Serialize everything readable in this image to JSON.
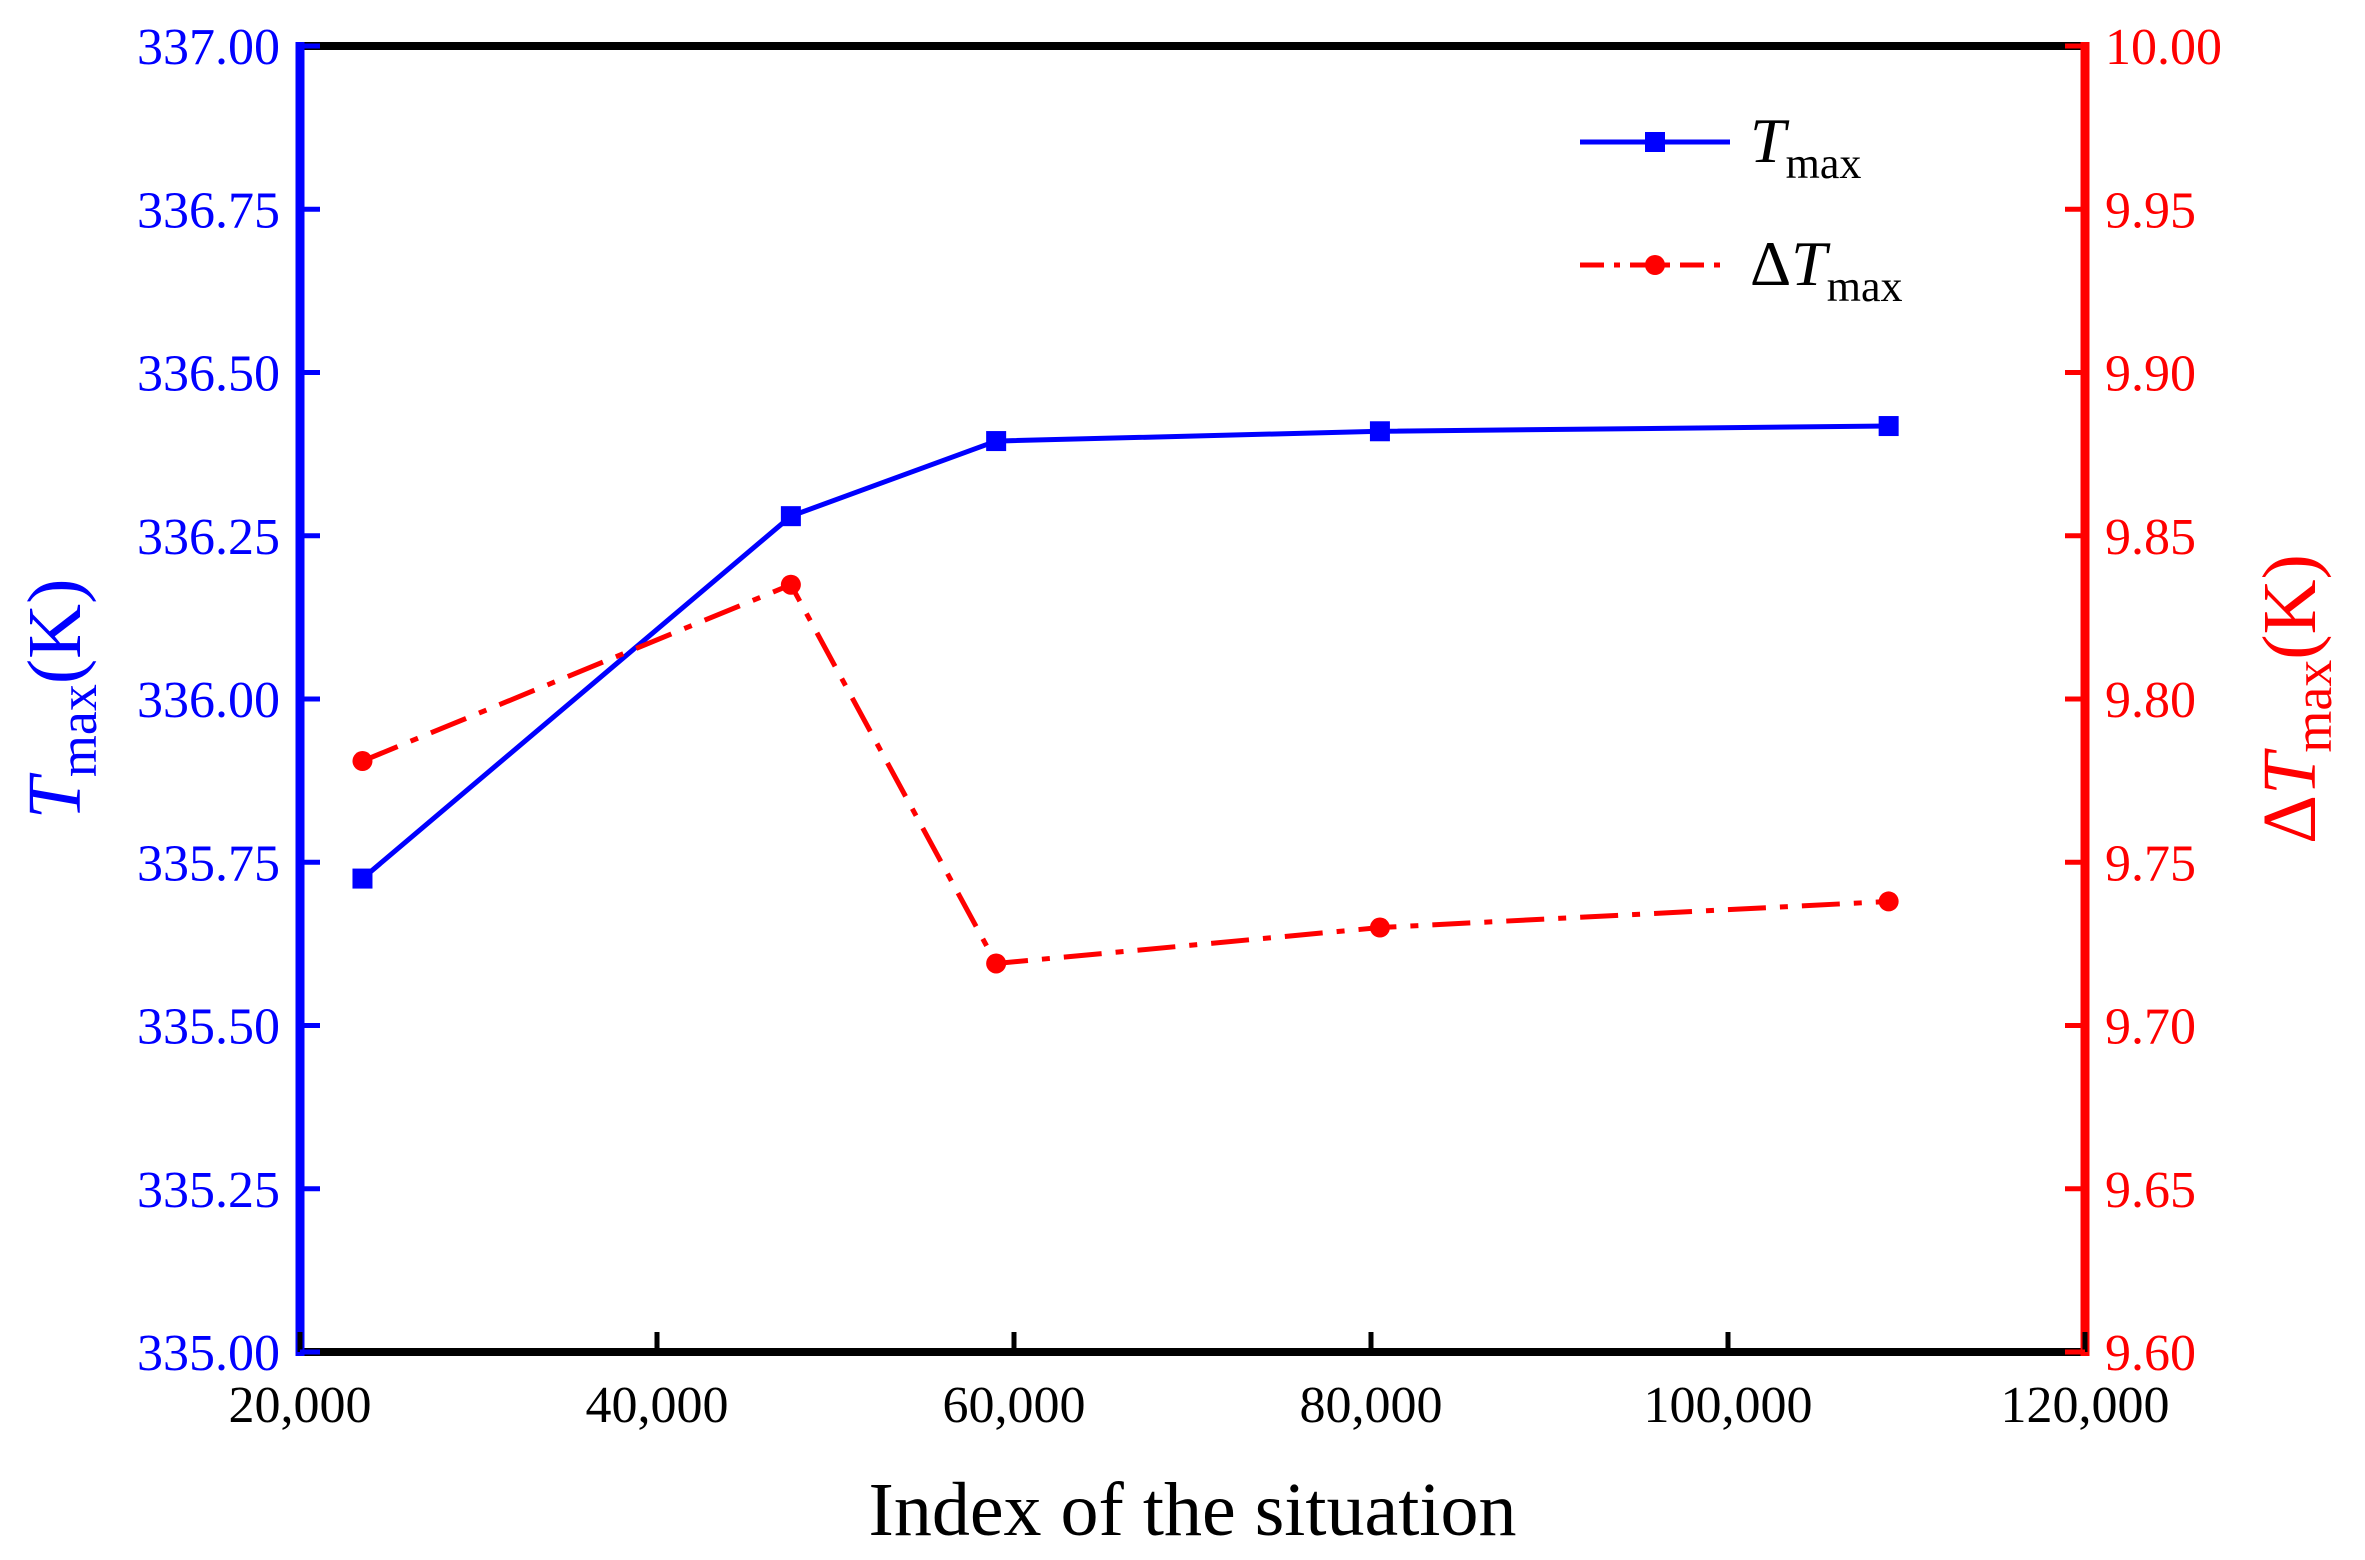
{
  "chart_data": {
    "type": "line",
    "title": "",
    "xlabel": "Index of the situation",
    "x": [
      23500,
      47500,
      59000,
      80500,
      109000
    ],
    "xlim": [
      20000,
      120000
    ],
    "x_ticks": [
      20000,
      40000,
      60000,
      80000,
      100000,
      120000
    ],
    "x_tick_labels": [
      "20,000",
      "40,000",
      "60,000",
      "80,000",
      "100,000",
      "120,000"
    ],
    "y_left": {
      "label_main": "T",
      "label_sub": "max",
      "label_suffix": "(K)",
      "ylim": [
        335.0,
        337.0
      ],
      "ticks": [
        335.0,
        335.25,
        335.5,
        335.75,
        336.0,
        336.25,
        336.5,
        336.75,
        337.0
      ],
      "tick_labels": [
        "335.00",
        "335.25",
        "335.50",
        "335.75",
        "336.00",
        "336.25",
        "336.50",
        "336.75",
        "337.00"
      ],
      "color": "#0000ff"
    },
    "y_right": {
      "label_prefix": "Δ",
      "label_main": "T",
      "label_sub": "max",
      "label_suffix": "(K)",
      "ylim": [
        9.6,
        10.0
      ],
      "ticks": [
        9.6,
        9.65,
        9.7,
        9.75,
        9.8,
        9.85,
        9.9,
        9.95,
        10.0
      ],
      "tick_labels": [
        "9.60",
        "9.65",
        "9.70",
        "9.75",
        "9.80",
        "9.85",
        "9.90",
        "9.95",
        "10.00"
      ],
      "color": "#ff0000"
    },
    "series": [
      {
        "name": "T max",
        "legend_prefix": "",
        "legend_main": "T",
        "legend_sub": "max",
        "axis": "left",
        "values": [
          335.725,
          336.28,
          336.395,
          336.41,
          336.418
        ],
        "color": "#0000ff",
        "line_style": "solid",
        "marker": "square"
      },
      {
        "name": "ΔT max",
        "legend_prefix": "Δ",
        "legend_main": "T",
        "legend_sub": "max",
        "axis": "right",
        "values": [
          9.781,
          9.835,
          9.719,
          9.73,
          9.738
        ],
        "color": "#ff0000",
        "line_style": "dash-dot",
        "marker": "circle"
      }
    ],
    "legend_position": "top-right",
    "grid": false
  }
}
